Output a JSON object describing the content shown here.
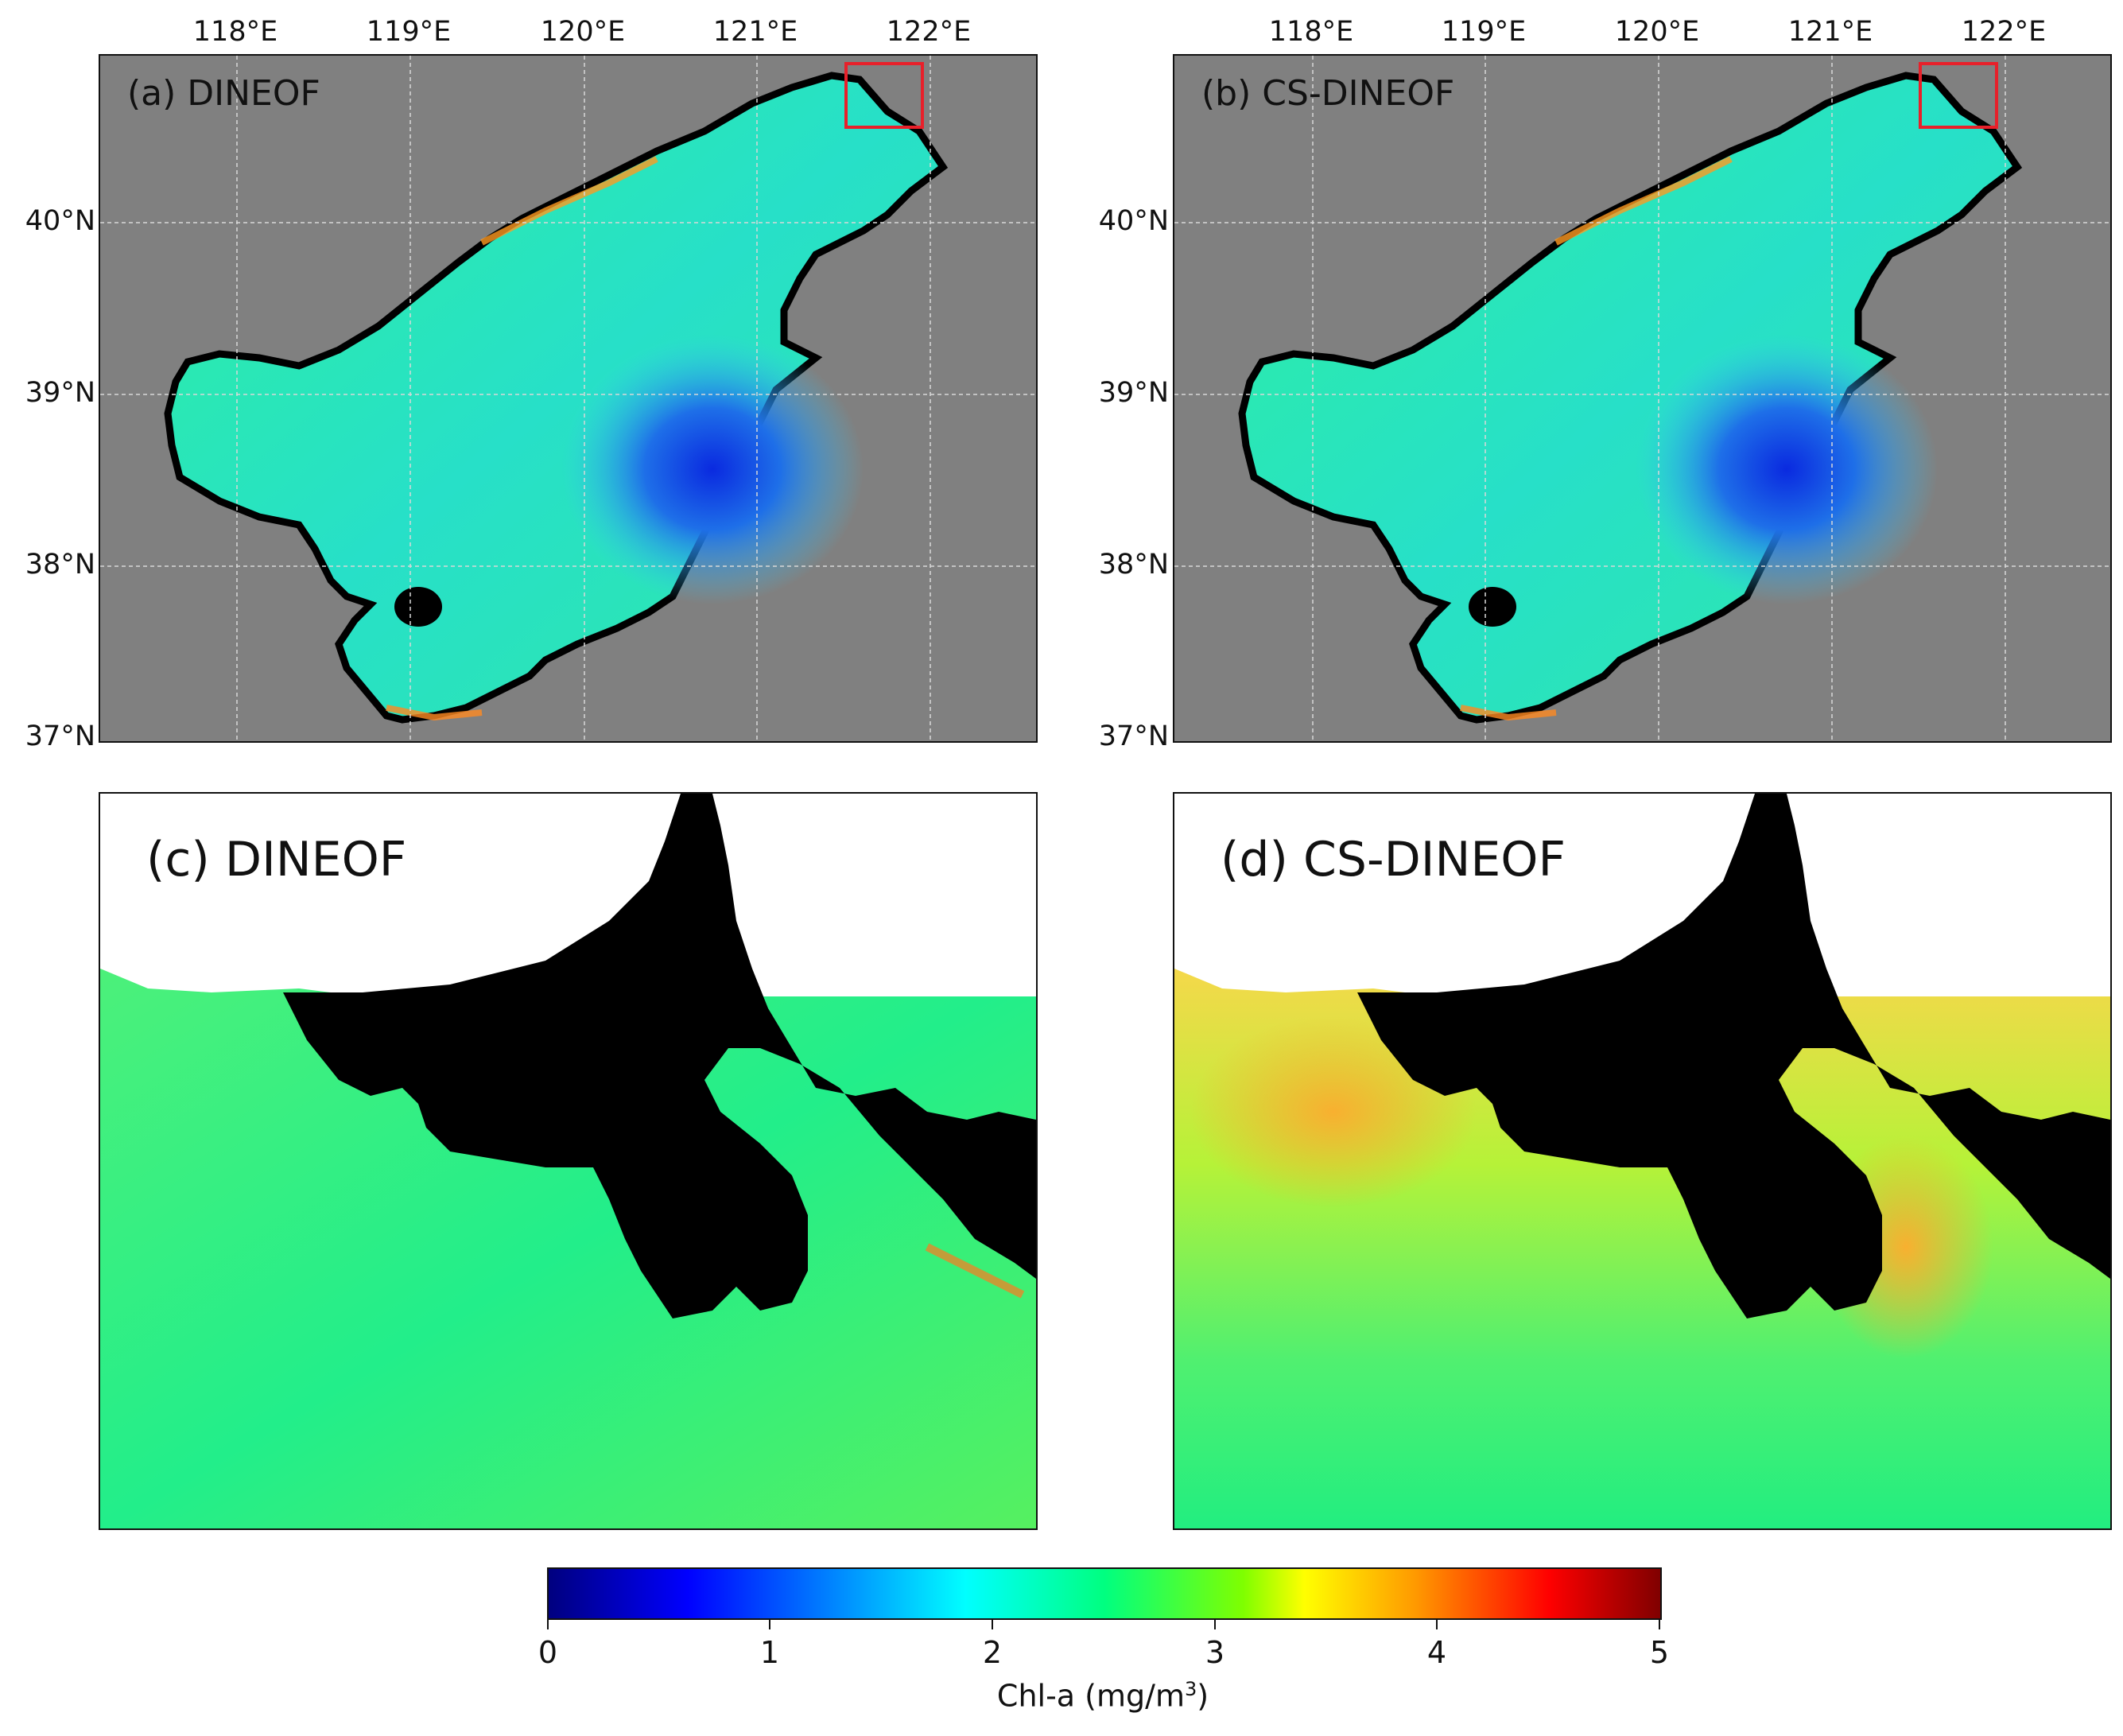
{
  "panels": {
    "a": {
      "label": "(a) DINEOF"
    },
    "b": {
      "label": "(b) CS-DINEOF"
    },
    "c": {
      "label": "(c) DINEOF"
    },
    "d": {
      "label": "(d) CS-DINEOF"
    }
  },
  "axes": {
    "lon_ticks": [
      "118°E",
      "119°E",
      "120°E",
      "121°E",
      "122°E"
    ],
    "lat_ticks": [
      "40°N",
      "39°N",
      "38°N",
      "37°N"
    ]
  },
  "colorbar": {
    "min": 0,
    "max": 5,
    "tick_labels": [
      "0",
      "1",
      "2",
      "3",
      "4",
      "5"
    ],
    "title": "Chl-a (mg/m",
    "title_sup": "3",
    "title_end": ")",
    "colormap": "jet"
  },
  "colors": {
    "land": "#808080",
    "coast": "#000000",
    "inset_box": "#e8202a",
    "grid": "#d0d0d0"
  }
}
